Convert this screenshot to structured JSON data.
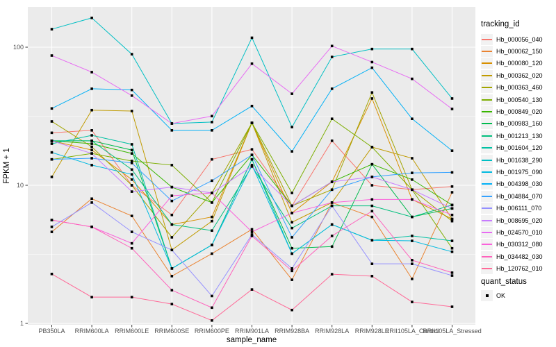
{
  "figure": {
    "background": "#FFFFFF",
    "panel_color": "#EBEBEB",
    "grid_color": "#FFFFFF",
    "tick_color": "#333333",
    "tick_label_color": "#4D4D4D",
    "axis_title_color": "#000000",
    "point_color": "#000000"
  },
  "legend": {
    "tracking": {
      "title": "tracking_id"
    },
    "quant": {
      "title": "quant_status",
      "ok_label": "OK",
      "key_shape": "black-square"
    }
  },
  "chart_data": {
    "type": "line",
    "title": "",
    "xlabel": "sample_name",
    "ylabel": "FPKM + 1",
    "y_scale": "log10",
    "y_ticks": [
      1,
      10,
      100
    ],
    "y_minor_ticks": [
      3.1623,
      31.623
    ],
    "ylim": [
      0.85,
      195
    ],
    "grid": true,
    "legend_position": "right",
    "point_shape": "square",
    "point_status_label": "OK",
    "categories": [
      "PB350LA",
      "RRIM600LA",
      "RRIM600LE",
      "RRIM600SE",
      "RRIM600PE",
      "RRIM901LA",
      "RRIM928BA",
      "RRIM928LA",
      "RRIM928LE",
      "RRII105LA_Control",
      "RRII105LA_Stressed"
    ],
    "series": [
      {
        "name": "Hb_000056_040",
        "color": "#F8766D",
        "values": [
          24,
          25,
          10,
          6.1,
          15.4,
          18.2,
          7.1,
          21,
          10,
          9.3,
          9.8
        ]
      },
      {
        "name": "Hb_000062_150",
        "color": "#EA8331",
        "values": [
          4.6,
          8,
          6,
          2.2,
          3.2,
          4.8,
          2.07,
          7.5,
          5.9,
          2.1,
          8.9
        ]
      },
      {
        "name": "Hb_000080_120",
        "color": "#D89000",
        "values": [
          21,
          18,
          11,
          5.2,
          5.9,
          28.3,
          6.3,
          10.6,
          42.5,
          7.9,
          5.7
        ]
      },
      {
        "name": "Hb_000362_020",
        "color": "#C09B00",
        "values": [
          11.5,
          35,
          34.5,
          3.4,
          5.5,
          28.3,
          5.4,
          7.5,
          18.9,
          15.7,
          5.7
        ]
      },
      {
        "name": "Hb_000363_460",
        "color": "#A3A500",
        "values": [
          29,
          19,
          10,
          4.2,
          8.8,
          28.3,
          7.1,
          9.3,
          47,
          9.3,
          5.5
        ]
      },
      {
        "name": "Hb_000540_130",
        "color": "#7CAE00",
        "values": [
          15.4,
          17,
          15,
          14,
          7.5,
          28.3,
          8.8,
          30.3,
          18.9,
          9.3,
          3.5
        ]
      },
      {
        "name": "Hb_000849_020",
        "color": "#39B600",
        "values": [
          21,
          20,
          17,
          9.7,
          7.5,
          16.6,
          7.1,
          10.6,
          14.2,
          11,
          7.2
        ]
      },
      {
        "name": "Hb_000983_160",
        "color": "#00BB4E",
        "values": [
          21,
          21,
          18,
          2.5,
          3.7,
          15.4,
          3.5,
          3.6,
          14.2,
          5.9,
          6.8
        ]
      },
      {
        "name": "Hb_001213_130",
        "color": "#00BF7D",
        "values": [
          21,
          21,
          13,
          5.2,
          4.7,
          13.7,
          4.9,
          7.1,
          7.1,
          5.9,
          7.2
        ]
      },
      {
        "name": "Hb_001604_120",
        "color": "#00C1A3",
        "values": [
          20,
          23,
          19.8,
          2.5,
          3.7,
          15.4,
          3.2,
          5.2,
          4.0,
          4.3,
          3.96
        ]
      },
      {
        "name": "Hb_001638_290",
        "color": "#00BFC4",
        "values": [
          135,
          163,
          89,
          28,
          28.7,
          117,
          26.4,
          85,
          97,
          97,
          42.5
        ]
      },
      {
        "name": "Hb_001975_090",
        "color": "#00BAE0",
        "values": [
          17.3,
          14,
          12,
          2.5,
          3.7,
          14,
          3.2,
          5.2,
          4.0,
          3.96,
          3.3
        ]
      },
      {
        "name": "Hb_004398_030",
        "color": "#00B0F6",
        "values": [
          36,
          50,
          49,
          25,
          25,
          37.5,
          17.6,
          50,
          71,
          30.3,
          17.8
        ]
      },
      {
        "name": "Hb_004884_070",
        "color": "#35A2FF",
        "values": [
          15.4,
          15.7,
          14.5,
          7.7,
          10.8,
          16.6,
          4.2,
          9.3,
          11.5,
          12.3,
          12.4
        ]
      },
      {
        "name": "Hb_006111_070",
        "color": "#9590FF",
        "values": [
          5.0,
          7.5,
          4.6,
          3.4,
          1.58,
          4.4,
          2.5,
          7.1,
          2.7,
          2.7,
          2.22
        ]
      },
      {
        "name": "Hb_008695_020",
        "color": "#C77CFF",
        "values": [
          21,
          17,
          9,
          9.7,
          8.8,
          13.7,
          7.1,
          10.6,
          11.5,
          9.3,
          6.8
        ]
      },
      {
        "name": "Hb_024570_010",
        "color": "#E76BF3",
        "values": [
          87,
          66,
          44.6,
          28,
          31.7,
          76,
          46,
          102,
          78,
          59,
          35.7
        ]
      },
      {
        "name": "Hb_030312_080",
        "color": "#FA62DB",
        "values": [
          5.6,
          5.0,
          3.8,
          8.4,
          8.8,
          4.6,
          6.3,
          7.5,
          7.9,
          7.9,
          6.1
        ]
      },
      {
        "name": "Hb_034482_030",
        "color": "#FF62BC",
        "values": [
          5.6,
          5.0,
          3.5,
          1.74,
          1.3,
          4.3,
          2.4,
          4.3,
          6.5,
          2.87,
          2.33
        ]
      },
      {
        "name": "Hb_120762_010",
        "color": "#FF6A98",
        "values": [
          2.28,
          1.55,
          1.55,
          1.38,
          1.05,
          1.76,
          1.25,
          2.27,
          2.2,
          1.43,
          1.32
        ]
      }
    ]
  }
}
